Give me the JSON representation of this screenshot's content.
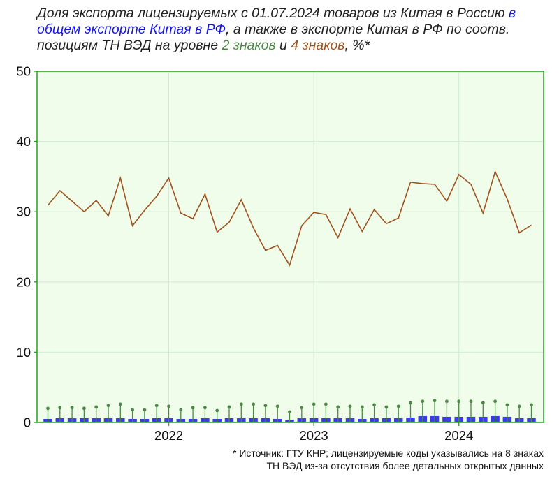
{
  "title": {
    "part1": "Доля экспорта лицензируемых с 01.07.2024 товаров из Китая в Россию ",
    "part_blue": "в общем экспорте Китая в РФ",
    "part2": ", а также в экспорте Китая в РФ по соотв. позициям ТН ВЭД на уровне ",
    "part_green": "2 знаков",
    "part3": " и ",
    "part_brown": "4 знаков",
    "part4": ", %*"
  },
  "footnote": {
    "line1": "* Источник: ГТУ КНР; лицензируемые коды указывались на 8 знаках",
    "line2": "ТН ВЭД из-за отсутствия более детальных открытых данных"
  },
  "colors": {
    "plot_bg": "#f0fdea",
    "frame": "#2fa82f",
    "grid": "#cfeccf",
    "total_bars": "#3b3bef",
    "hs2_stems": "#4a8a45",
    "hs4_line": "#a0521e"
  },
  "chart_data": {
    "type": "bar+line",
    "x_start": "2021-03",
    "x_frequency": "monthly",
    "x_tick_labels": [
      "2022",
      "2023",
      "2024"
    ],
    "ylim": [
      0,
      50
    ],
    "y_ticks": [
      0,
      10,
      20,
      30,
      40,
      50
    ],
    "grid": true,
    "series": [
      {
        "kind": "bar",
        "values": [
          0.5,
          0.6,
          0.6,
          0.6,
          0.6,
          0.6,
          0.6,
          0.5,
          0.5,
          0.6,
          0.6,
          0.5,
          0.5,
          0.6,
          0.5,
          0.6,
          0.6,
          0.6,
          0.6,
          0.5,
          0.4,
          0.6,
          0.6,
          0.6,
          0.6,
          0.6,
          0.5,
          0.6,
          0.6,
          0.6,
          0.7,
          0.9,
          0.9,
          0.8,
          0.8,
          0.8,
          0.8,
          0.9,
          0.8,
          0.6,
          0.6
        ]
      },
      {
        "kind": "stem",
        "values": [
          2.0,
          2.1,
          2.1,
          2.0,
          2.2,
          2.4,
          2.6,
          1.8,
          1.8,
          2.4,
          2.3,
          1.8,
          2.1,
          2.1,
          1.7,
          2.2,
          2.6,
          2.6,
          2.4,
          2.3,
          1.5,
          2.1,
          2.6,
          2.6,
          2.2,
          2.3,
          2.2,
          2.5,
          2.2,
          2.3,
          2.8,
          3.0,
          3.1,
          3.0,
          3.0,
          3.0,
          2.8,
          3.0,
          2.5,
          2.3,
          2.5
        ]
      },
      {
        "kind": "line",
        "values": [
          30.9,
          33.0,
          31.5,
          30.0,
          31.6,
          29.4,
          34.8,
          28.0,
          30.2,
          32.2,
          34.8,
          29.8,
          29.0,
          32.5,
          27.1,
          28.5,
          31.7,
          27.7,
          24.5,
          25.2,
          22.4,
          28.0,
          29.9,
          29.6,
          26.3,
          30.4,
          27.2,
          30.3,
          28.3,
          29.1,
          34.2,
          34.0,
          33.9,
          31.5,
          35.3,
          33.9,
          29.8,
          35.7,
          31.8,
          27.0,
          28.1
        ]
      }
    ]
  }
}
